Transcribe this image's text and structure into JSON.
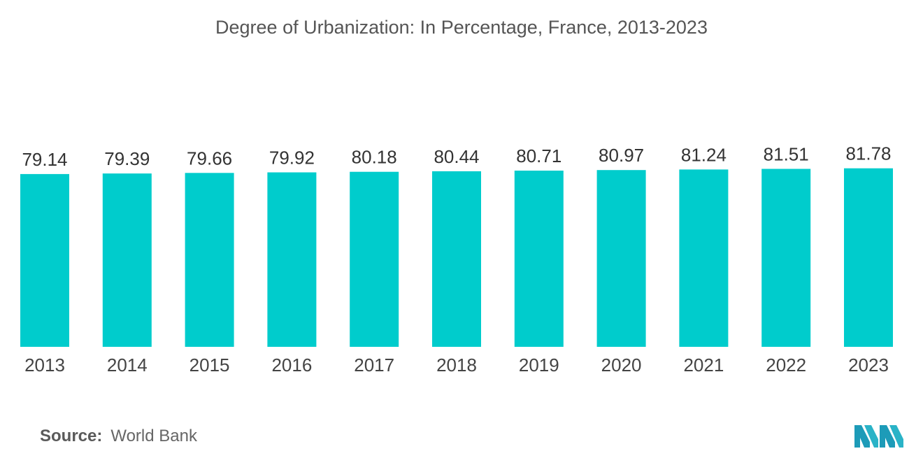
{
  "colors": {
    "bar": "#00CCCC",
    "value_text": "#333333",
    "tick_text": "#444444"
  },
  "chart_data": {
    "type": "bar",
    "title": "Degree of Urbanization: In Percentage, France, 2013-2023",
    "xlabel": "",
    "ylabel": "",
    "categories": [
      "2013",
      "2014",
      "2015",
      "2016",
      "2017",
      "2018",
      "2019",
      "2020",
      "2021",
      "2022",
      "2023"
    ],
    "values": [
      79.14,
      79.39,
      79.66,
      79.92,
      80.18,
      80.44,
      80.71,
      80.97,
      81.24,
      81.51,
      81.78
    ],
    "value_labels": [
      "79.14",
      "79.39",
      "79.66",
      "79.92",
      "80.18",
      "80.44",
      "80.71",
      "80.97",
      "81.24",
      "81.51",
      "81.78"
    ],
    "ylim": [
      0,
      82
    ],
    "grid": false,
    "legend": "none"
  },
  "source": {
    "label": "Source:",
    "value": "World Bank"
  },
  "logo": {
    "icon": "mordor-intelligence-logo-icon"
  }
}
